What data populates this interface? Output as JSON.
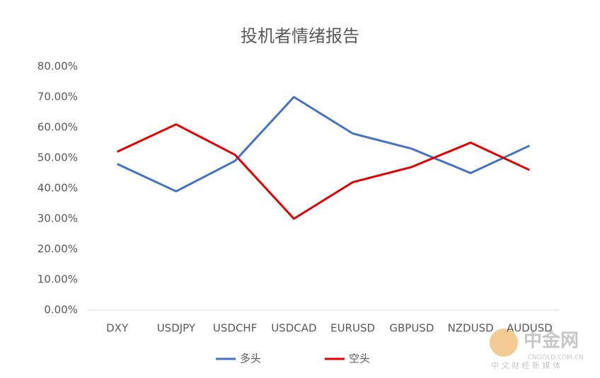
{
  "chart_data": {
    "type": "line",
    "title": "投机者情绪报告",
    "categories": [
      "DXY",
      "USDJPY",
      "USDCHF",
      "USDCAD",
      "EURUSD",
      "GBPUSD",
      "NZDUSD",
      "AUDUSD"
    ],
    "series": [
      {
        "name": "多头",
        "color": "#4472c4",
        "values": [
          48,
          39,
          49,
          70,
          58,
          53,
          45,
          54
        ]
      },
      {
        "name": "空头",
        "color": "#e00000",
        "values": [
          52,
          61,
          51,
          30,
          42,
          47,
          55,
          46
        ]
      }
    ],
    "ylim": [
      0,
      80
    ],
    "yticks": [
      {
        "value": 0,
        "label": "0.00%"
      },
      {
        "value": 10,
        "label": "10.00%"
      },
      {
        "value": 20,
        "label": "20.00%"
      },
      {
        "value": 30,
        "label": "30.00%"
      },
      {
        "value": 40,
        "label": "40.00%"
      },
      {
        "value": 50,
        "label": "50.00%"
      },
      {
        "value": 60,
        "label": "60.00%"
      },
      {
        "value": 70,
        "label": "70.00%"
      },
      {
        "value": 80,
        "label": "80.00%"
      }
    ],
    "grid": false,
    "legend": "bottom"
  },
  "watermark": {
    "name": "中金网",
    "site": "CNGOLD.COM.CN",
    "tagline": "中 文 财 经 新 媒 体"
  }
}
